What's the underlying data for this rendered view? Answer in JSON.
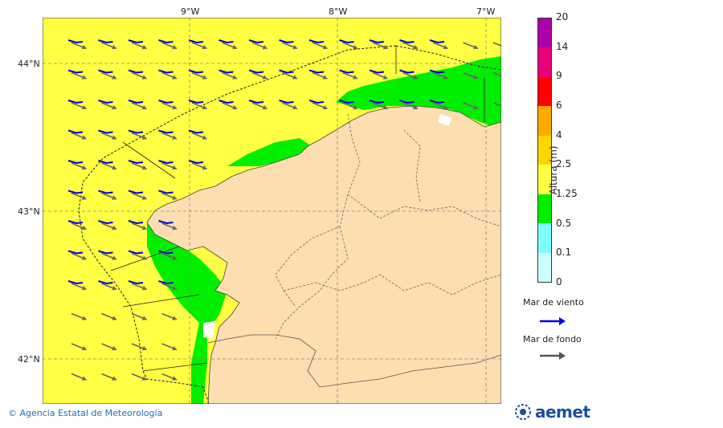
{
  "map": {
    "lon_labels": [
      "9°W",
      "8°W",
      "7°W"
    ],
    "lat_labels": [
      "44°N",
      "43°N",
      "42°N"
    ]
  },
  "colorbar": {
    "title": "Altura (m)",
    "ticks": [
      "20",
      "14",
      "9",
      "6",
      "4",
      "2.5",
      "1.25",
      "0.5",
      "0.1",
      "0"
    ],
    "colors": [
      "#aa00aa",
      "#e6007a",
      "#ff0000",
      "#ffaa00",
      "#ffd700",
      "#ffff44",
      "#00ee00",
      "#80ffff",
      "#ccffff"
    ]
  },
  "legend": {
    "wind_sea_label": "Mar de viento",
    "wind_sea_color": "#0000dd",
    "swell_label": "Mar de fondo",
    "swell_color": "#555555"
  },
  "footer": {
    "credit": "© Agencia Estatal de Meteorología",
    "logo_text": "aemet"
  }
}
